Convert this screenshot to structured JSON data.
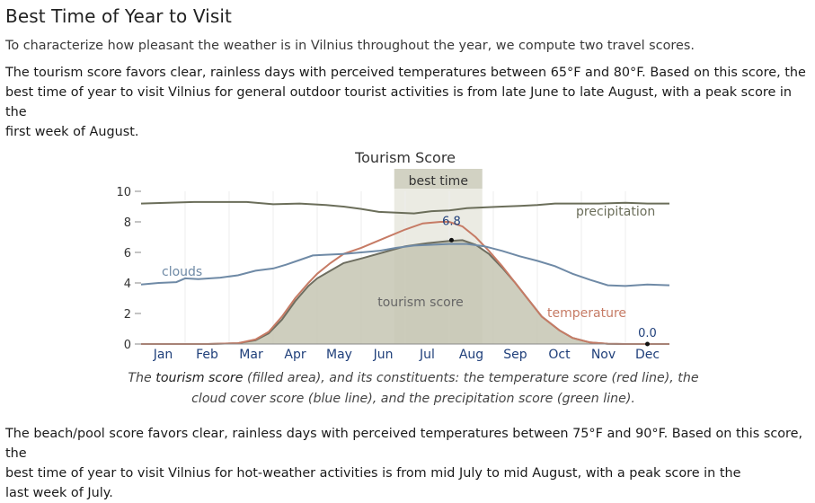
{
  "page": {
    "title": "Best Time of Year to Visit",
    "intro": "To characterize how pleasant the weather is in Vilnius throughout the year, we compute two travel scores.",
    "tourism_text": {
      "t1": "The ",
      "t2": "tourism score",
      "t3": " favors clear, rainless days with perceived temperatures between 65°F and 80°F. Based on this score, the best time of year to visit Vilnius for general outdoor tourist activities is from ",
      "t4": "late June",
      "t5": " to ",
      "t6": "late August",
      "t7": ", with a peak score in the",
      "t8": "first week of August",
      "t9": "."
    },
    "caption": {
      "c1": "The ",
      "c2": "tourism score",
      "c3": " (filled area), and its constituents: the temperature score (red line), the",
      "c4": "cloud cover score (blue line), and the precipitation score (green line)."
    },
    "beach_text": {
      "b1": "The ",
      "b2": "beach/pool score",
      "b3": " favors clear, rainless days with perceived temperatures between 75°F and 90°F. Based on this score, the",
      "b4": "best time of year to visit Vilnius for hot-weather activities is from ",
      "b5": "mid July",
      "b6": " to ",
      "b7": "mid August",
      "b8": ", with a peak score in the",
      "b9": "last week of July",
      "b10": "."
    }
  },
  "chart_data": {
    "type": "area",
    "title": "Tourism Score",
    "months": [
      "Jan",
      "Feb",
      "Mar",
      "Apr",
      "May",
      "Jun",
      "Jul",
      "Aug",
      "Sep",
      "Oct",
      "Nov",
      "Dec"
    ],
    "y_ticks": [
      "0",
      "2",
      "4",
      "6",
      "8",
      "10"
    ],
    "ylim": [
      0,
      10
    ],
    "x_unit": "month (fractional, 0 = start of Jan, 12 = end of Dec)",
    "best_time": {
      "label": "best time",
      "start": 5.75,
      "end": 7.75
    },
    "annotations": [
      {
        "label": "6.8",
        "x": 7.05,
        "y": 6.8
      },
      {
        "label": "0.0",
        "x": 11.5,
        "y": 0.0
      }
    ],
    "series": [
      {
        "name": "tourism score",
        "kind": "area",
        "color": "#c5c5b3",
        "line": "#6e6e60",
        "x": [
          0,
          1.5,
          2.2,
          2.6,
          2.9,
          3.2,
          3.5,
          3.8,
          4.0,
          4.3,
          4.6,
          5.0,
          5.5,
          6.0,
          6.5,
          7.0,
          7.3,
          7.6,
          7.9,
          8.2,
          8.5,
          8.8,
          9.1,
          9.5,
          9.8,
          10.2,
          10.6,
          11.0,
          12.0
        ],
        "y": [
          0,
          0,
          0.05,
          0.25,
          0.7,
          1.6,
          2.8,
          3.8,
          4.3,
          4.8,
          5.3,
          5.6,
          6.0,
          6.4,
          6.6,
          6.75,
          6.8,
          6.5,
          5.9,
          5.0,
          4.0,
          2.9,
          1.8,
          0.9,
          0.4,
          0.1,
          0.02,
          0,
          0
        ]
      },
      {
        "name": "temperature",
        "kind": "line",
        "color": "#c67b65",
        "x": [
          0,
          1.5,
          2.2,
          2.6,
          2.9,
          3.2,
          3.5,
          3.8,
          4.0,
          4.3,
          4.6,
          5.0,
          5.5,
          6.0,
          6.4,
          6.8,
          7.0,
          7.3,
          7.6,
          7.9,
          8.2,
          8.5,
          8.8,
          9.1,
          9.5,
          9.8,
          10.2,
          10.6,
          11.0,
          12.0
        ],
        "y": [
          0,
          0,
          0.05,
          0.3,
          0.8,
          1.8,
          3.0,
          4.0,
          4.6,
          5.3,
          5.9,
          6.3,
          6.9,
          7.5,
          7.9,
          8.0,
          8.0,
          7.7,
          7.0,
          6.1,
          5.1,
          4.0,
          2.9,
          1.8,
          0.9,
          0.4,
          0.1,
          0.02,
          0,
          0
        ]
      },
      {
        "name": "clouds",
        "kind": "line",
        "color": "#6f8aa6",
        "x": [
          0,
          0.4,
          0.8,
          1.0,
          1.3,
          1.8,
          2.2,
          2.6,
          3.0,
          3.3,
          3.6,
          3.9,
          4.2,
          4.6,
          5.0,
          5.4,
          5.8,
          6.2,
          6.6,
          7.0,
          7.4,
          7.8,
          8.2,
          8.6,
          9.0,
          9.4,
          9.8,
          10.2,
          10.6,
          11.0,
          11.5,
          12.0
        ],
        "y": [
          3.9,
          4.0,
          4.05,
          4.3,
          4.25,
          4.35,
          4.5,
          4.8,
          4.95,
          5.2,
          5.5,
          5.8,
          5.85,
          5.9,
          6.0,
          6.1,
          6.3,
          6.45,
          6.5,
          6.55,
          6.55,
          6.4,
          6.1,
          5.75,
          5.45,
          5.1,
          4.6,
          4.2,
          3.85,
          3.8,
          3.9,
          3.85
        ]
      },
      {
        "name": "precipitation",
        "kind": "line",
        "color": "#6b6e5a",
        "x": [
          0,
          0.6,
          1.2,
          1.8,
          2.4,
          3.0,
          3.6,
          4.2,
          4.6,
          5.0,
          5.4,
          5.8,
          6.2,
          6.6,
          7.0,
          7.4,
          7.8,
          8.2,
          8.6,
          9.0,
          9.4,
          9.8,
          10.4,
          11.0,
          11.5,
          12.0
        ],
        "y": [
          9.2,
          9.25,
          9.3,
          9.3,
          9.3,
          9.15,
          9.2,
          9.1,
          9.0,
          8.85,
          8.65,
          8.6,
          8.55,
          8.7,
          8.75,
          8.9,
          8.95,
          9.0,
          9.05,
          9.1,
          9.2,
          9.2,
          9.2,
          9.25,
          9.2,
          9.2
        ]
      }
    ],
    "line_labels": [
      {
        "label": "clouds",
        "color": "#6f8aa6"
      },
      {
        "label": "precipitation",
        "color": "#6b6e5a"
      },
      {
        "label": "tourism score",
        "color": "#666666"
      },
      {
        "label": "temperature",
        "color": "#c67b65"
      }
    ]
  }
}
